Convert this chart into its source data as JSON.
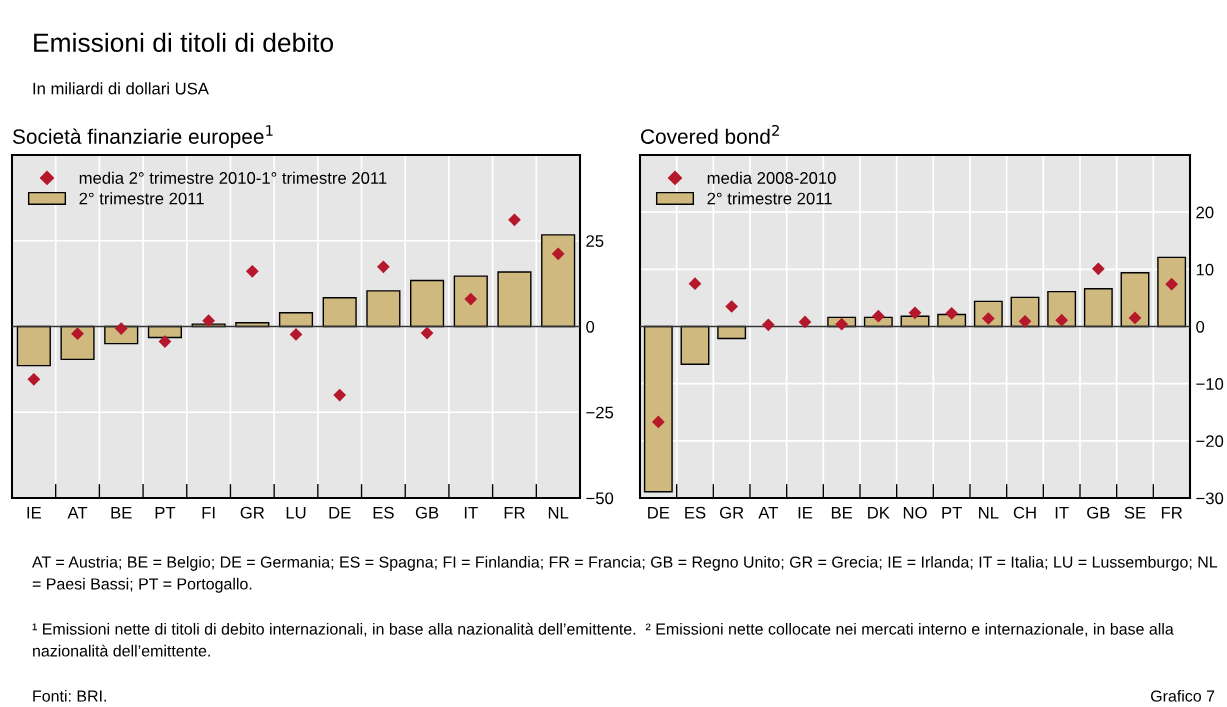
{
  "chart_data": [
    {
      "type": "other",
      "title": "Emissioni di titoli di debito",
      "subtitle": "In miliardi di dollari USA",
      "annotations": [
        "AT = Austria; BE = Belgio; DE = Germania; ES = Spagna; FI = Finlandia; FR = Francia; GB = Regno Unito; GR = Grecia; IE = Irlanda; IT = Italia; LU = Lussemburgo; NL = Paesi Bassi; PT = Portogallo.",
        "¹ Emissioni nette di titoli di debito internazionali, in base alla nazionalità dell’emittente.  ² Emissioni nette collocate nei mercati interno e internazionale, in base alla nazionalità dell’emittente.",
        "Fonti: BRI.",
        "Grafico 7"
      ]
    },
    {
      "type": "bar",
      "title": "Società finanziarie europee$^{1}$",
      "categories": [
        "IE",
        "AT",
        "BE",
        "PT",
        "FI",
        "GR",
        "LU",
        "DE",
        "ES",
        "GB",
        "IT",
        "FR",
        "NL"
      ],
      "series": [
        {
          "name": "media 2° trimestre 2010-1° trimestre 2011",
          "type": "scatter",
          "color": "#b5172b",
          "values": [
            -15.4,
            -2.1,
            -0.6,
            -4.4,
            1.7,
            16.1,
            -2.3,
            -20.0,
            17.4,
            -1.9,
            8.0,
            31.1,
            21.2
          ]
        },
        {
          "name": "2° trimestre 2011",
          "type": "bar",
          "color": "#cfb97f",
          "values": [
            -11.4,
            -9.6,
            -5.0,
            -3.2,
            0.7,
            1.1,
            4.0,
            8.4,
            10.4,
            13.4,
            14.7,
            15.9,
            26.7
          ]
        }
      ],
      "ylim": [
        -50,
        50
      ],
      "yticks": [
        -50,
        -25,
        0,
        25
      ],
      "grid": true,
      "legend": "top left",
      "marker": "diamond"
    },
    {
      "type": "bar",
      "title": "Covered bond$^{2}$",
      "categories": [
        "DE",
        "ES",
        "GR",
        "AT",
        "IE",
        "BE",
        "DK",
        "NO",
        "PT",
        "NL",
        "CH",
        "IT",
        "GB",
        "SE",
        "FR"
      ],
      "series": [
        {
          "name": "media 2008-2010",
          "type": "scatter",
          "color": "#b5172b",
          "values": [
            -16.7,
            7.5,
            3.5,
            0.3,
            0.8,
            0.4,
            1.8,
            2.4,
            2.3,
            1.4,
            0.9,
            1.1,
            10.1,
            1.5,
            7.4
          ]
        },
        {
          "name": "2° trimestre 2011",
          "type": "bar",
          "color": "#cfb97f",
          "values": [
            -28.9,
            -6.6,
            -2.1,
            null,
            null,
            1.6,
            1.6,
            1.8,
            2.1,
            4.4,
            5.1,
            6.1,
            6.6,
            9.4,
            12.1
          ]
        }
      ],
      "ylim": [
        -30,
        30
      ],
      "yticks": [
        -30,
        -20,
        -10,
        0,
        10,
        20
      ],
      "grid": true,
      "legend": "top left",
      "marker": "diamond"
    }
  ]
}
